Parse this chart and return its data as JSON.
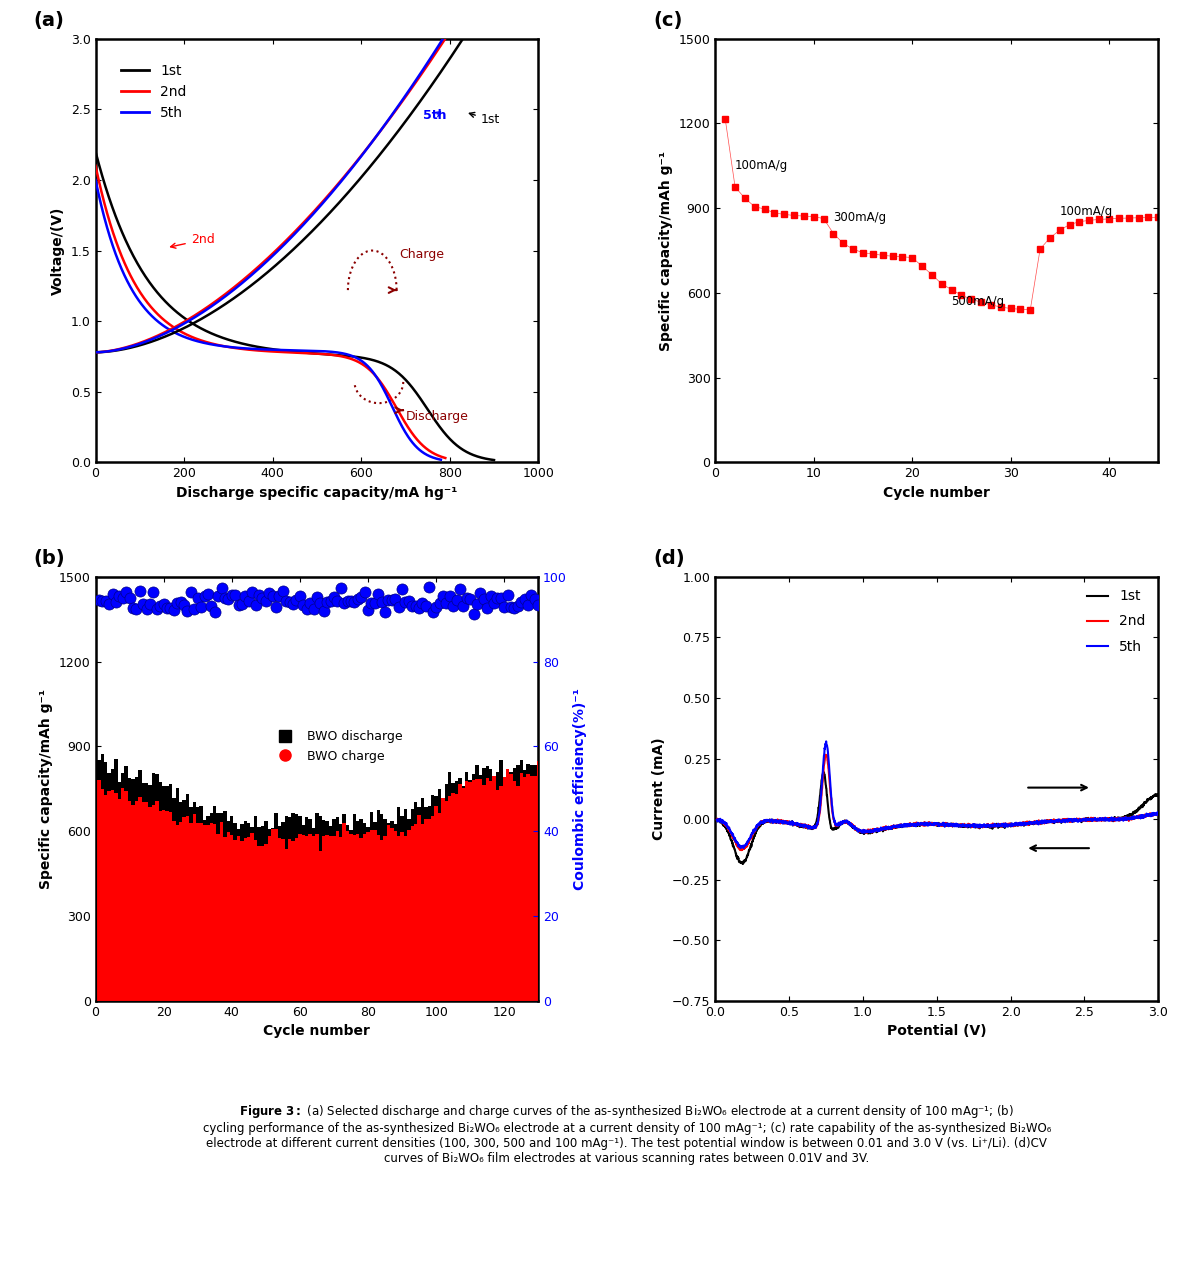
{
  "panel_a": {
    "title": "(a)",
    "xlabel": "Discharge specific capacity/mA hg⁻¹",
    "ylabel": "Voltage/(V)",
    "xlim": [
      0,
      1000
    ],
    "ylim": [
      0.0,
      3.0
    ],
    "xticks": [
      0,
      200,
      400,
      600,
      800,
      1000
    ],
    "yticks": [
      0.0,
      0.5,
      1.0,
      1.5,
      2.0,
      2.5,
      3.0
    ]
  },
  "panel_b": {
    "title": "(b)",
    "xlabel": "Cycle number",
    "ylabel": "Specific capacity/mAh g⁻¹",
    "ylabel2": "Coulombic efficiency(%)⁻¹",
    "xlim": [
      0,
      130
    ],
    "ylim": [
      0,
      1500
    ],
    "ylim2": [
      0,
      100
    ],
    "xticks": [
      0,
      20,
      40,
      60,
      80,
      100,
      120
    ],
    "yticks": [
      0,
      300,
      600,
      900,
      1200,
      1500
    ],
    "yticks2": [
      0,
      20,
      40,
      60,
      80,
      100
    ]
  },
  "panel_c": {
    "title": "(c)",
    "xlabel": "Cycle number",
    "ylabel": "Specific capacity/mAh g⁻¹",
    "xlim": [
      0,
      45
    ],
    "ylim": [
      0,
      1500
    ],
    "xticks": [
      0,
      10,
      20,
      30,
      40
    ],
    "yticks": [
      0,
      300,
      600,
      900,
      1200,
      1500
    ]
  },
  "panel_d": {
    "title": "(d)",
    "xlabel": "Potential (V)",
    "ylabel": "Current (mA)",
    "xlim": [
      0.0,
      3.0
    ],
    "ylim": [
      -0.75,
      1.0
    ],
    "xticks": [
      0.0,
      0.5,
      1.0,
      1.5,
      2.0,
      2.5,
      3.0
    ],
    "yticks": [
      -0.75,
      -0.5,
      -0.25,
      0.0,
      0.25,
      0.5,
      0.75,
      1.0
    ]
  }
}
